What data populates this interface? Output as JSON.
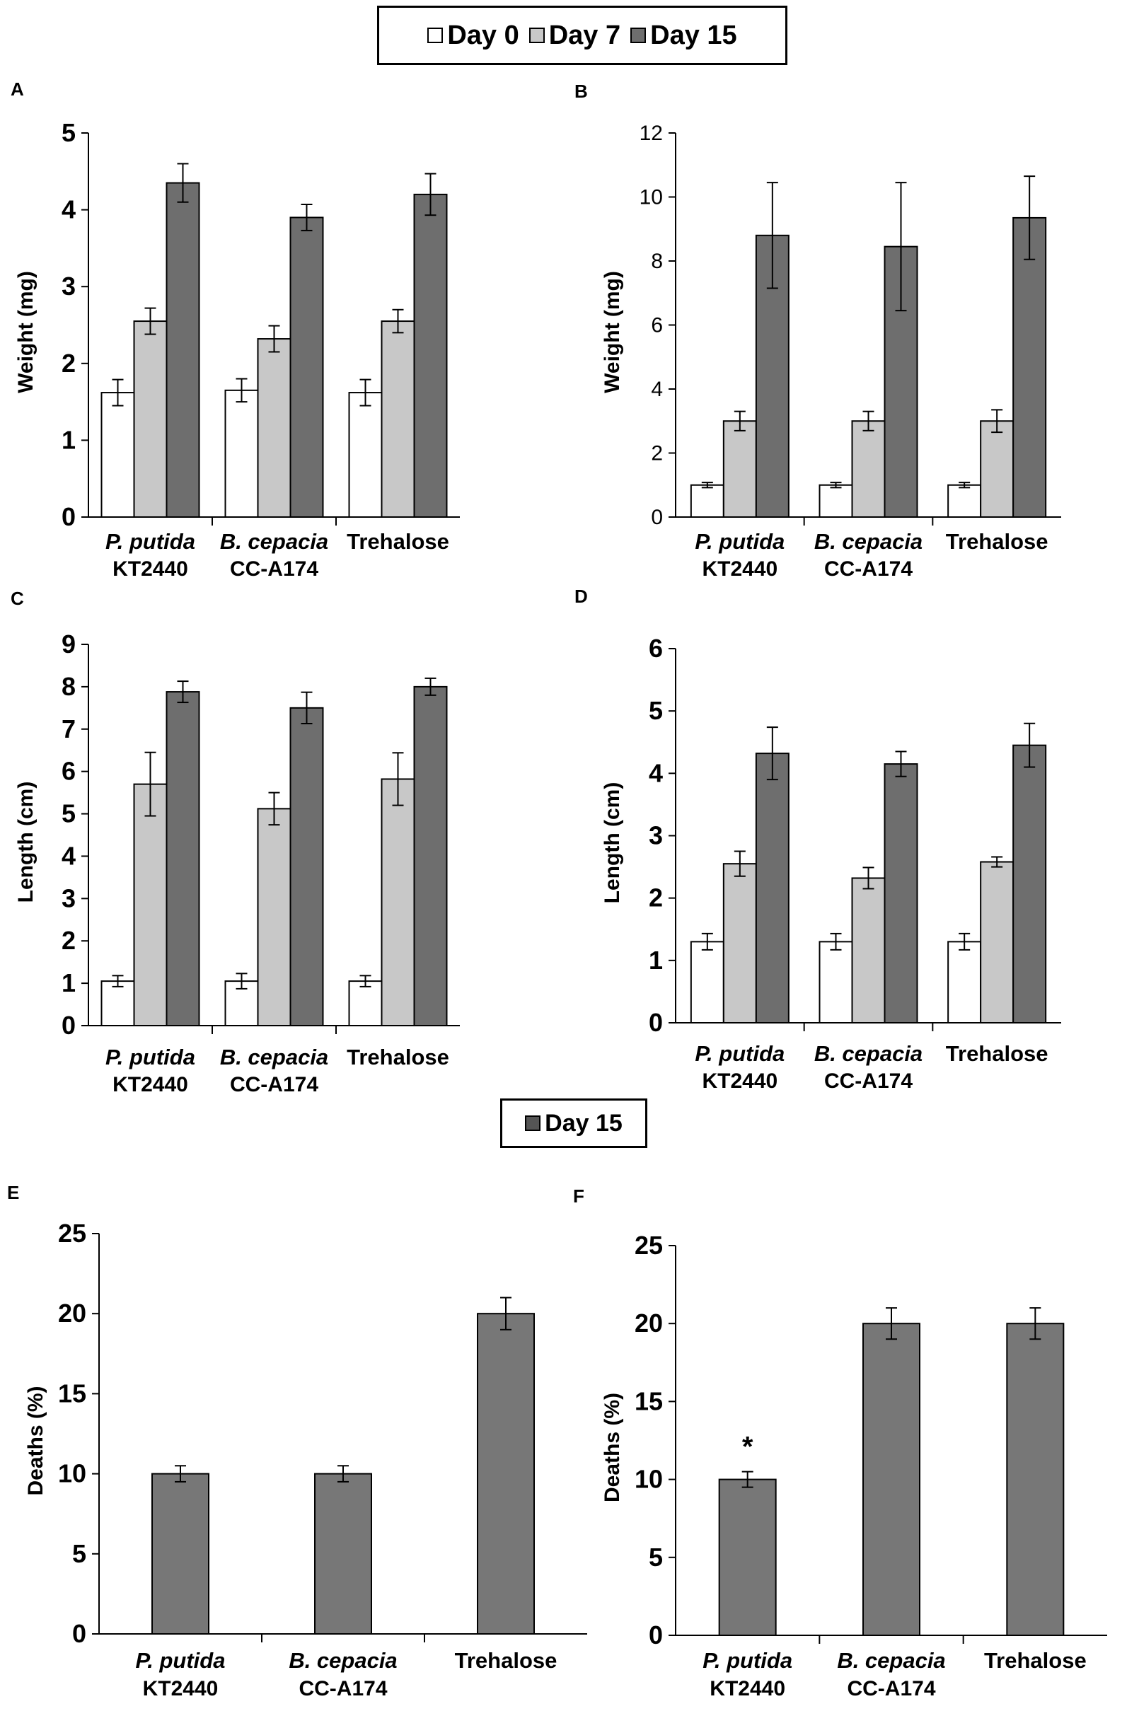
{
  "colors": {
    "day0": "#ffffff",
    "day7": "#c8c8c8",
    "day15": "#6e6e6e",
    "axis": "#000000"
  },
  "legend_top": {
    "items": [
      {
        "label": "Day 0",
        "color": "#ffffff"
      },
      {
        "label": "Day 7",
        "color": "#c8c8c8"
      },
      {
        "label": "Day 15",
        "color": "#6e6e6e"
      }
    ]
  },
  "legend_middle": {
    "items": [
      {
        "label": "Day 15",
        "color": "#555555"
      }
    ]
  },
  "chart_data": [
    {
      "panel": "A",
      "type": "bar",
      "ylabel": "Weight (mg)",
      "ylim": [
        0,
        5
      ],
      "yticks": [
        0,
        1,
        2,
        3,
        4,
        5
      ],
      "categories": [
        {
          "italic": "P. putida",
          "strain": "KT2440"
        },
        {
          "italic": "B. cepacia",
          "strain": "CC-A174"
        },
        {
          "italic": "",
          "strain": "Trehalose"
        }
      ],
      "series": [
        {
          "name": "Day 0",
          "values": [
            1.62,
            1.65,
            1.62
          ],
          "errors": [
            0.17,
            0.15,
            0.17
          ]
        },
        {
          "name": "Day 7",
          "values": [
            2.55,
            2.32,
            2.55
          ],
          "errors": [
            0.17,
            0.17,
            0.15
          ]
        },
        {
          "name": "Day 15",
          "values": [
            4.35,
            3.9,
            4.2
          ],
          "errors": [
            0.25,
            0.17,
            0.27
          ]
        }
      ]
    },
    {
      "panel": "B",
      "type": "bar",
      "ylabel": "Weight (mg)",
      "ylim": [
        0,
        12
      ],
      "yticks": [
        0,
        2,
        4,
        6,
        8,
        10,
        12
      ],
      "categories": [
        {
          "italic": "P. putida",
          "strain": "KT2440"
        },
        {
          "italic": "B. cepacia",
          "strain": "CC-A174"
        },
        {
          "italic": "",
          "strain": "Trehalose"
        }
      ],
      "series": [
        {
          "name": "Day 0",
          "values": [
            1.0,
            1.0,
            1.0
          ],
          "errors": [
            0.08,
            0.08,
            0.08
          ]
        },
        {
          "name": "Day 7",
          "values": [
            3.0,
            3.0,
            3.0
          ],
          "errors": [
            0.3,
            0.3,
            0.35
          ]
        },
        {
          "name": "Day 15",
          "values": [
            8.8,
            8.45,
            9.35
          ],
          "errors": [
            1.65,
            2.0,
            1.3
          ]
        }
      ]
    },
    {
      "panel": "C",
      "type": "bar",
      "ylabel": "Length (cm)",
      "ylim": [
        0,
        9
      ],
      "yticks": [
        0,
        1,
        2,
        3,
        4,
        5,
        6,
        7,
        8,
        9
      ],
      "categories": [
        {
          "italic": "P. putida",
          "strain": "KT2440"
        },
        {
          "italic": "B. cepacia",
          "strain": "CC-A174"
        },
        {
          "italic": "",
          "strain": "Trehalose"
        }
      ],
      "series": [
        {
          "name": "Day 0",
          "values": [
            1.05,
            1.05,
            1.05
          ],
          "errors": [
            0.13,
            0.18,
            0.13
          ]
        },
        {
          "name": "Day 7",
          "values": [
            5.7,
            5.12,
            5.82
          ],
          "errors": [
            0.75,
            0.38,
            0.62
          ]
        },
        {
          "name": "Day 15",
          "values": [
            7.88,
            7.5,
            8.0
          ],
          "errors": [
            0.25,
            0.37,
            0.2
          ]
        }
      ]
    },
    {
      "panel": "D",
      "type": "bar",
      "ylabel": "Length (cm)",
      "ylim": [
        0,
        6
      ],
      "yticks": [
        0,
        1,
        2,
        3,
        4,
        5,
        6
      ],
      "categories": [
        {
          "italic": "P. putida",
          "strain": "KT2440"
        },
        {
          "italic": "B. cepacia",
          "strain": "CC-A174"
        },
        {
          "italic": "",
          "strain": "Trehalose"
        }
      ],
      "series": [
        {
          "name": "Day 0",
          "values": [
            1.3,
            1.3,
            1.3
          ],
          "errors": [
            0.13,
            0.13,
            0.13
          ]
        },
        {
          "name": "Day 7",
          "values": [
            2.55,
            2.32,
            2.58
          ],
          "errors": [
            0.2,
            0.17,
            0.08
          ]
        },
        {
          "name": "Day 15",
          "values": [
            4.32,
            4.15,
            4.45
          ],
          "errors": [
            0.42,
            0.2,
            0.35
          ]
        }
      ]
    },
    {
      "panel": "E",
      "type": "bar",
      "ylabel": "Deaths (%)",
      "ylim": [
        0,
        25
      ],
      "yticks": [
        0,
        5,
        10,
        15,
        20,
        25
      ],
      "categories": [
        {
          "italic": "P. putida",
          "strain": "KT2440"
        },
        {
          "italic": "B. cepacia",
          "strain": "CC-A174"
        },
        {
          "italic": "",
          "strain": "Trehalose"
        }
      ],
      "series": [
        {
          "name": "Day 15",
          "values": [
            10,
            10,
            20
          ],
          "errors": [
            0.5,
            0.5,
            1.0
          ]
        }
      ]
    },
    {
      "panel": "F",
      "type": "bar",
      "ylabel": "Deaths (%)",
      "ylim": [
        0,
        25
      ],
      "yticks": [
        0,
        5,
        10,
        15,
        20,
        25
      ],
      "categories": [
        {
          "italic": "P. putida",
          "strain": "KT2440"
        },
        {
          "italic": "B. cepacia",
          "strain": "CC-A174"
        },
        {
          "italic": "",
          "strain": "Trehalose"
        }
      ],
      "series": [
        {
          "name": "Day 15",
          "values": [
            10,
            20,
            20
          ],
          "errors": [
            0.5,
            1.0,
            1.0
          ]
        }
      ],
      "annotations": [
        {
          "category": 0,
          "text": "*"
        }
      ]
    }
  ]
}
